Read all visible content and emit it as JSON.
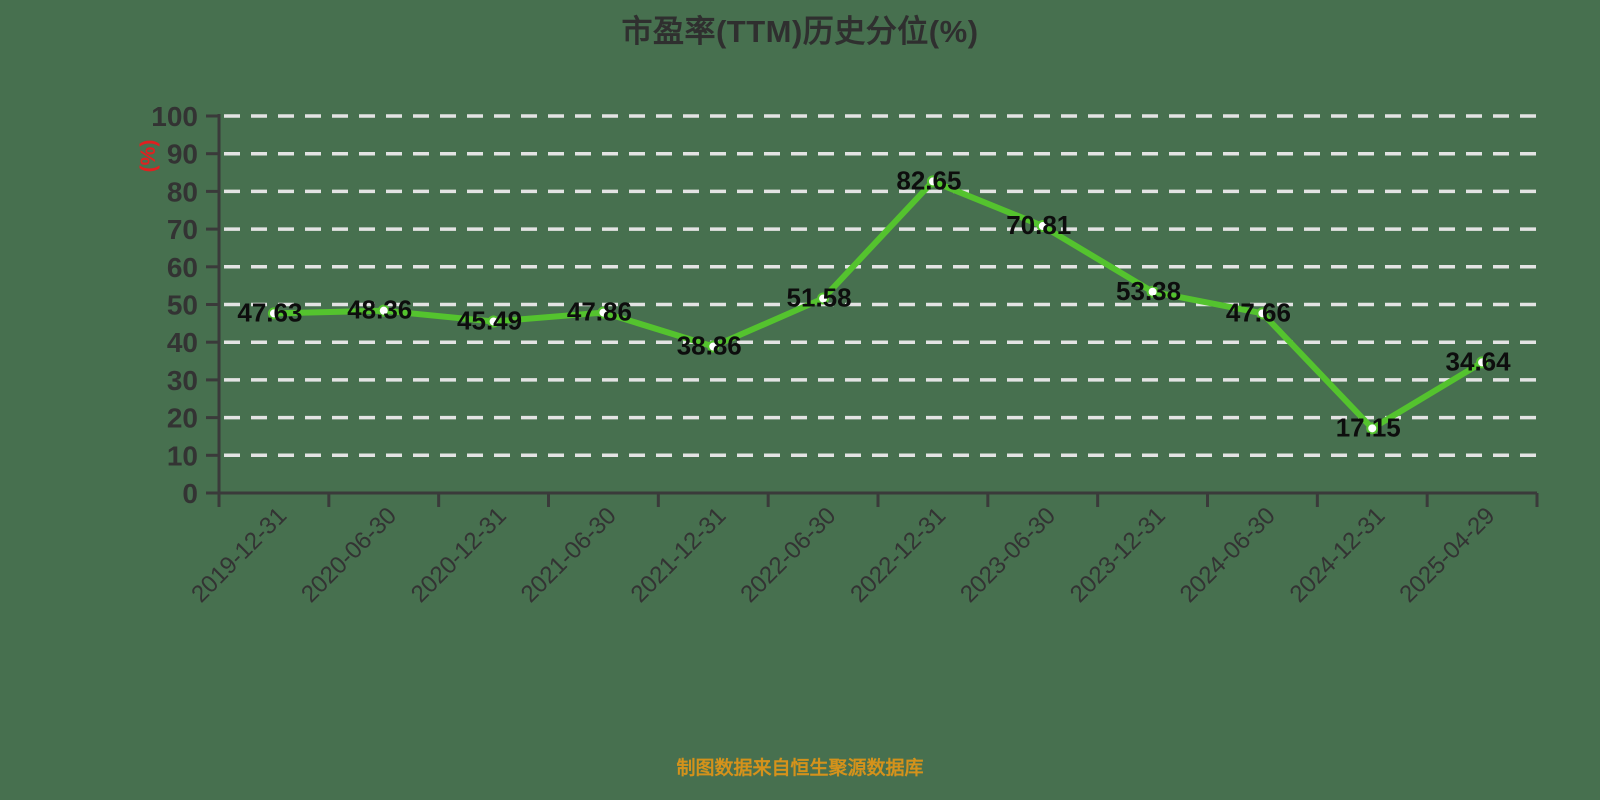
{
  "chart_data": {
    "type": "line",
    "title": "市盈率(TTM)历史分位(%)",
    "ylabel": "(%)",
    "xlabel": "",
    "source_note": "制图数据来自恒生聚源数据库",
    "categories": [
      "2019-12-31",
      "2020-06-30",
      "2020-12-31",
      "2021-06-30",
      "2021-12-31",
      "2022-06-30",
      "2022-12-31",
      "2023-06-30",
      "2023-12-31",
      "2024-06-30",
      "2024-12-31",
      "2025-04-29"
    ],
    "values": [
      47.63,
      48.36,
      45.49,
      47.86,
      38.86,
      51.58,
      82.65,
      70.81,
      53.38,
      47.66,
      17.15,
      34.64
    ],
    "ylim": [
      0,
      100
    ],
    "y_tick_step": 10,
    "grid": "horizontal-dashed",
    "legend": "none",
    "marker": "circle",
    "colors": {
      "background": "#47704F",
      "line": "#54C32E",
      "marker_fill": "#FFFFFF",
      "grid": "#E3E3E3",
      "axis": "#3A3A3A",
      "tick_label": "#333333",
      "data_label": "#0D0D0D",
      "title": "#2F2F2F",
      "ylabel": "#E02020",
      "source": "#D4921B"
    }
  }
}
